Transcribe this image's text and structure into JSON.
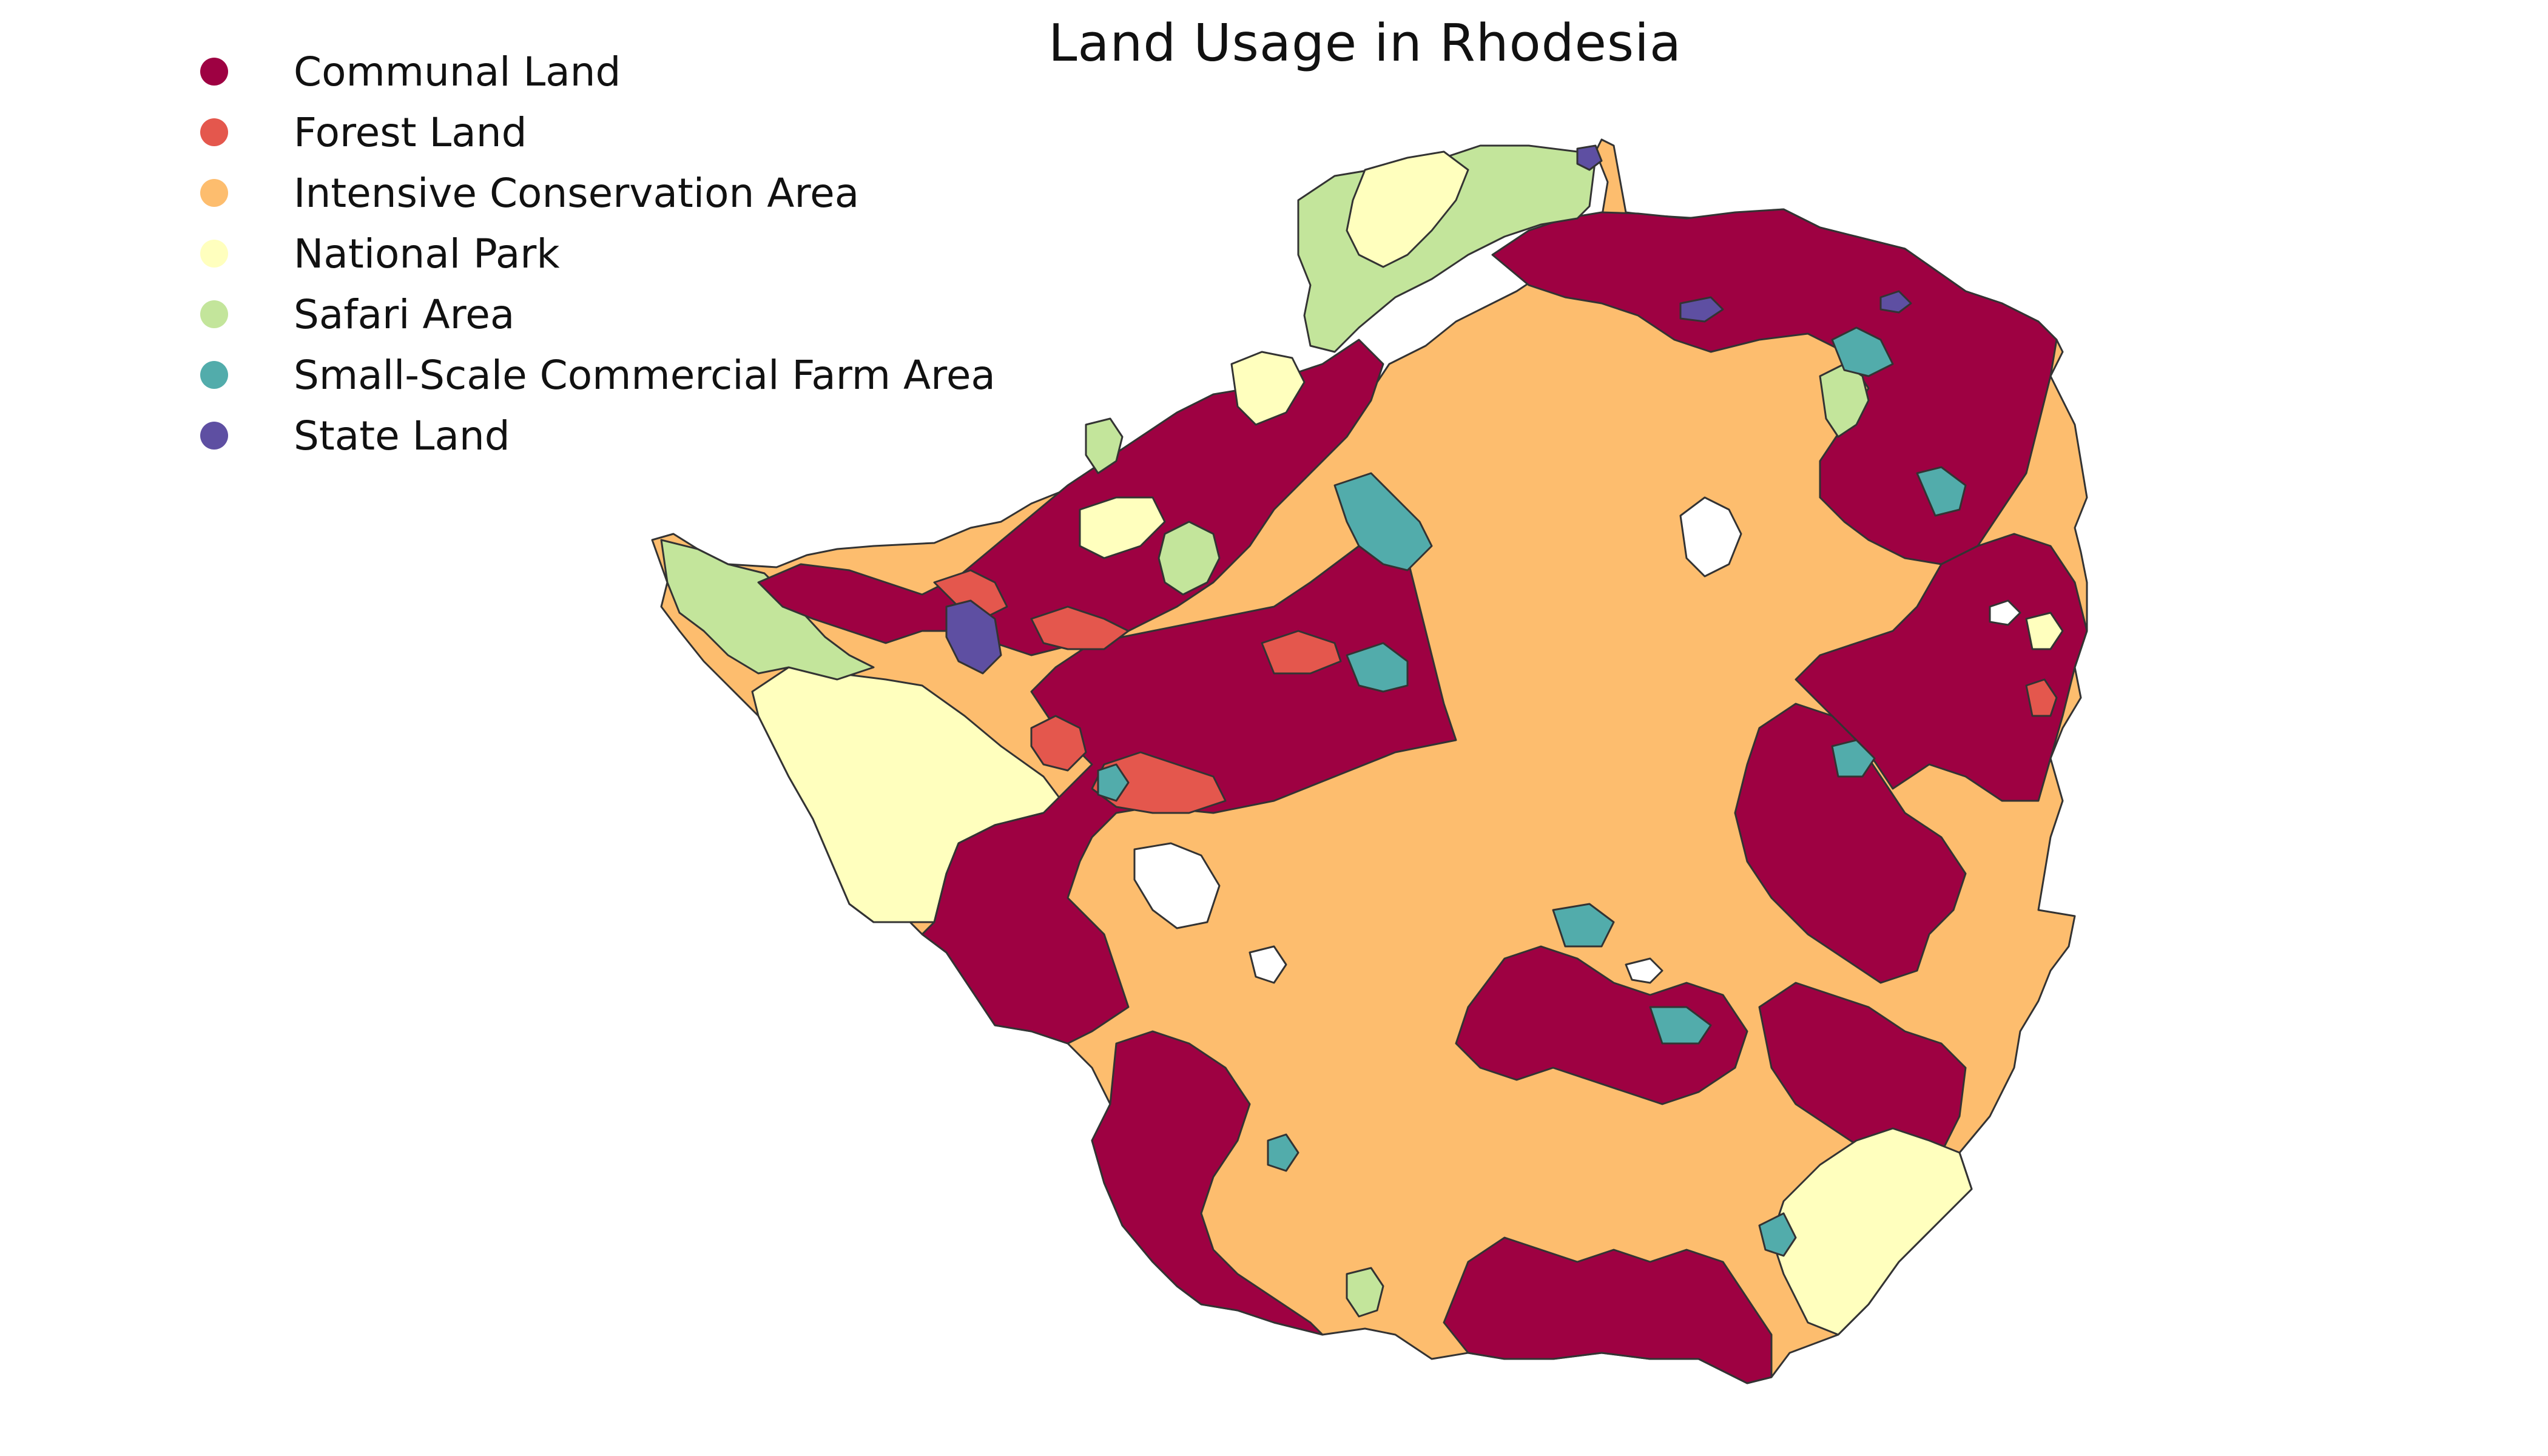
{
  "title": "Land Usage in Rhodesia",
  "legend": {
    "items": [
      {
        "label": "Communal Land",
        "color": "#9e0142"
      },
      {
        "label": "Forest Land",
        "color": "#e4574d"
      },
      {
        "label": "Intensive Conservation Area",
        "color": "#fdbd6e"
      },
      {
        "label": "National Park",
        "color": "#ffffbe"
      },
      {
        "label": "Safari Area",
        "color": "#c3e59b"
      },
      {
        "label": "Small-Scale Commercial Farm Area",
        "color": "#52acab"
      },
      {
        "label": "State Land",
        "color": "#5e4fa2"
      }
    ]
  }
}
